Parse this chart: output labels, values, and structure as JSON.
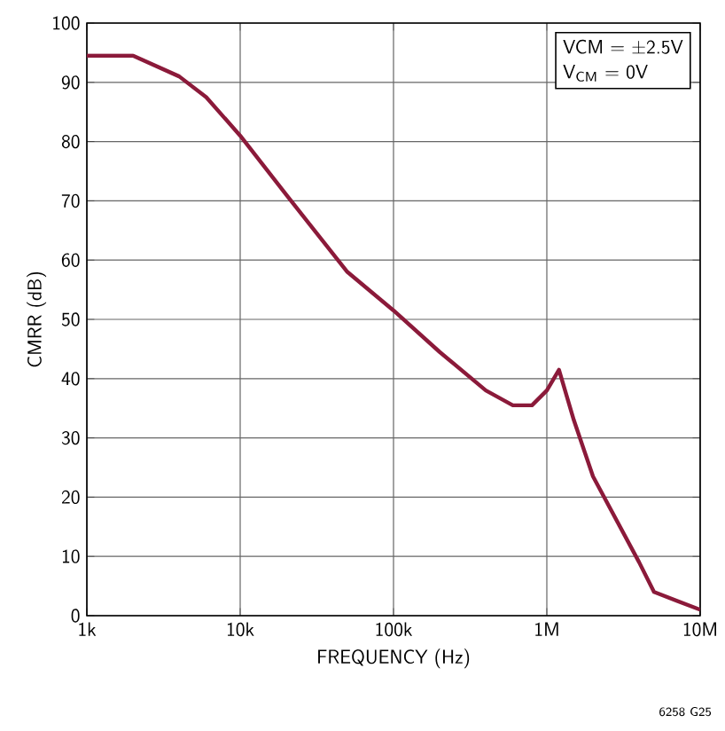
{
  "chart_data": {
    "type": "line",
    "xlabel": "FREQUENCY (Hz)",
    "ylabel": "CMRR (dB)",
    "x": [
      1000,
      2000,
      4000,
      6000,
      10000,
      20000,
      50000,
      100000,
      200000,
      400000,
      600000,
      800000,
      1000000,
      1200000,
      1500000,
      2000000,
      4000000,
      5000000,
      10000000
    ],
    "series": [
      {
        "color": "#8b1a3a",
        "values": [
          94.5,
          94.5,
          91,
          87.5,
          81,
          71,
          58,
          51.5,
          44.5,
          38,
          35.5,
          35.5,
          38,
          41.5,
          33,
          23.5,
          9,
          4,
          1
        ]
      }
    ],
    "log": "x",
    "grid": true,
    "marker": "none",
    "line_style": "solid",
    "xlim": [
      1000,
      10000000
    ],
    "ylim": [
      0,
      100
    ],
    "xticks": [
      {
        "value": 1000,
        "label": "1k"
      },
      {
        "value": 10000,
        "label": "10k"
      },
      {
        "value": 100000,
        "label": "100k"
      },
      {
        "value": 1000000,
        "label": "1M"
      },
      {
        "value": 10000000,
        "label": "10M"
      }
    ],
    "yticks": [
      0,
      10,
      20,
      30,
      40,
      50,
      60,
      70,
      80,
      90,
      100
    ],
    "annotations": [
      "VCM = ±2.5V",
      "V$_{CM}$ = 0V",
      "6258 G25"
    ]
  }
}
